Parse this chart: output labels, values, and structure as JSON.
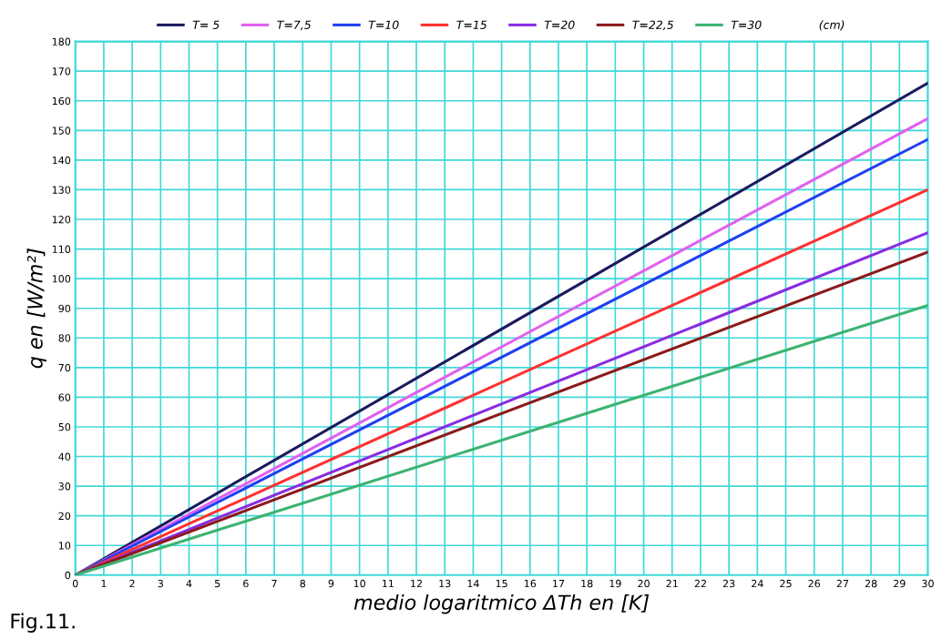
{
  "chart_data": {
    "type": "line",
    "xlabel": "medio logaritmico ΔTh en [K]",
    "ylabel": "q en [W/m²]",
    "legend_title": "(cm)",
    "x": [
      0,
      30
    ],
    "series": [
      {
        "name": "T= 5",
        "color": "#1a1a5e",
        "values": [
          0,
          166
        ]
      },
      {
        "name": "T=7,5",
        "color": "#e060f0",
        "values": [
          0,
          154
        ]
      },
      {
        "name": "T=10",
        "color": "#2040f0",
        "values": [
          0,
          147
        ]
      },
      {
        "name": "T=15",
        "color": "#ff3030",
        "values": [
          0,
          130
        ]
      },
      {
        "name": "T=20",
        "color": "#8a2be2",
        "values": [
          0,
          115.5
        ]
      },
      {
        "name": "T=22,5",
        "color": "#8b1a1a",
        "values": [
          0,
          109
        ]
      },
      {
        "name": "T=30",
        "color": "#3cb371",
        "values": [
          0,
          91
        ]
      }
    ],
    "xlim": [
      0,
      30
    ],
    "xticks": [
      0,
      1,
      2,
      3,
      4,
      5,
      6,
      7,
      8,
      9,
      10,
      11,
      12,
      13,
      14,
      15,
      16,
      17,
      18,
      19,
      20,
      21,
      22,
      23,
      24,
      25,
      26,
      27,
      28,
      29,
      30
    ],
    "ylim": [
      0,
      180
    ],
    "yticks": [
      0,
      10,
      20,
      30,
      40,
      50,
      60,
      70,
      80,
      90,
      100,
      110,
      120,
      130,
      140,
      150,
      160,
      170,
      180
    ],
    "grid": true,
    "legend": "top",
    "marker": "none",
    "line_style": "solid",
    "annotations": [
      "Fig.11."
    ]
  }
}
